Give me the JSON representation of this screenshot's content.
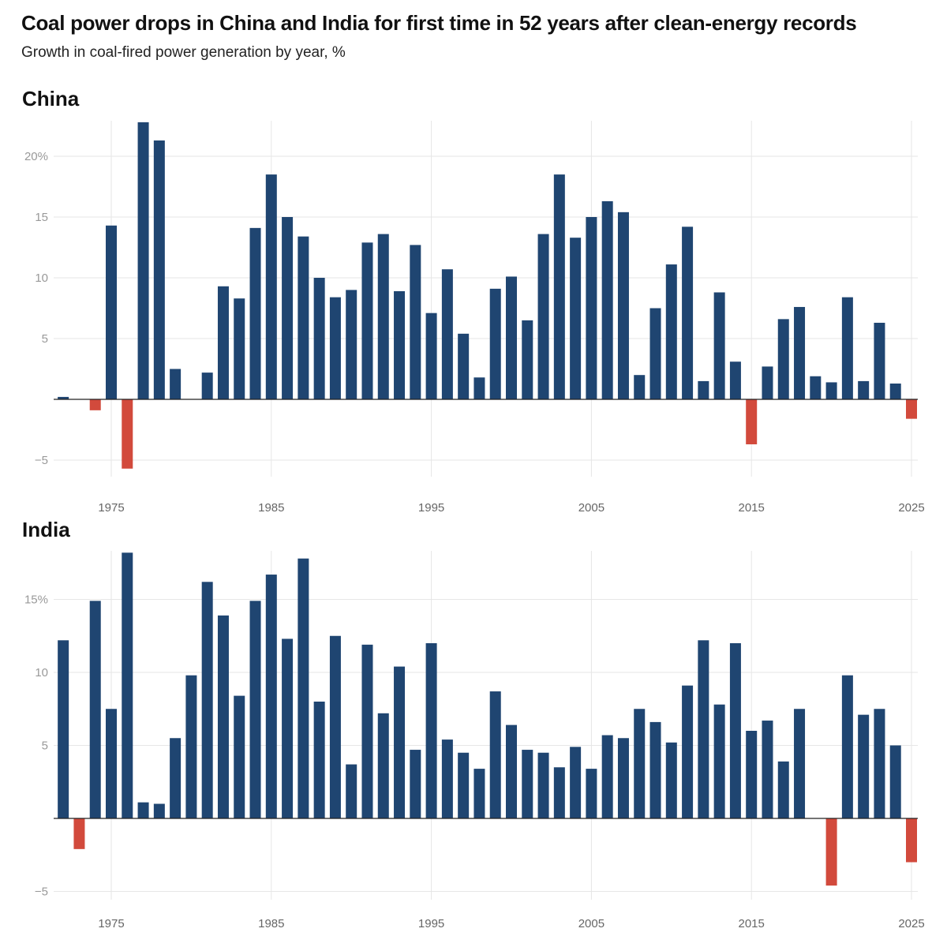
{
  "title": "Coal power drops in China and India for first time in 52 years after clean-energy records",
  "subtitle": "Growth in coal-fired power generation by year, %",
  "colors": {
    "positive": "#1f4571",
    "negative": "#d24a3c",
    "grid": "#e6e6e6",
    "axis": "#222222"
  },
  "chart_data": [
    {
      "type": "bar",
      "title": "China",
      "xlabel": "",
      "ylabel": "",
      "x_ticks": [
        "1975",
        "1985",
        "1995",
        "2005",
        "2015",
        "2025"
      ],
      "y_ticks": [
        {
          "v": -5,
          "label": "−5"
        },
        {
          "v": 5,
          "label": "5"
        },
        {
          "v": 10,
          "label": "10"
        },
        {
          "v": 15,
          "label": "15"
        },
        {
          "v": 20,
          "label": "20%"
        }
      ],
      "ylim": [
        -5.7,
        23
      ],
      "grid": true,
      "years": [
        1972,
        1973,
        1974,
        1975,
        1976,
        1977,
        1978,
        1979,
        1980,
        1981,
        1982,
        1983,
        1984,
        1985,
        1986,
        1987,
        1988,
        1989,
        1990,
        1991,
        1992,
        1993,
        1994,
        1995,
        1996,
        1997,
        1998,
        1999,
        2000,
        2001,
        2002,
        2003,
        2004,
        2005,
        2006,
        2007,
        2008,
        2009,
        2010,
        2011,
        2012,
        2013,
        2014,
        2015,
        2016,
        2017,
        2018,
        2019,
        2020,
        2021,
        2022,
        2023,
        2024,
        2025
      ],
      "values": [
        0.2,
        0,
        -0.9,
        14.3,
        -5.7,
        22.8,
        21.3,
        2.5,
        0,
        2.2,
        9.3,
        8.3,
        14.1,
        18.5,
        15.0,
        13.4,
        10.0,
        8.4,
        9.0,
        12.9,
        13.6,
        8.9,
        12.7,
        7.1,
        10.7,
        5.4,
        1.8,
        9.1,
        10.1,
        6.5,
        13.6,
        18.5,
        13.3,
        15.0,
        16.3,
        15.4,
        2.0,
        7.5,
        11.1,
        14.2,
        1.5,
        8.8,
        3.1,
        -3.7,
        2.7,
        6.6,
        7.6,
        1.9,
        1.4,
        8.4,
        1.5,
        6.3,
        1.3,
        -1.6
      ]
    },
    {
      "type": "bar",
      "title": "India",
      "xlabel": "",
      "ylabel": "",
      "x_ticks": [
        "1975",
        "1985",
        "1995",
        "2005",
        "2015",
        "2025"
      ],
      "y_ticks": [
        {
          "v": -5,
          "label": "−5"
        },
        {
          "v": 5,
          "label": "5"
        },
        {
          "v": 10,
          "label": "10"
        },
        {
          "v": 15,
          "label": "15%"
        }
      ],
      "ylim": [
        -5,
        18.3
      ],
      "grid": true,
      "years": [
        1972,
        1973,
        1974,
        1975,
        1976,
        1977,
        1978,
        1979,
        1980,
        1981,
        1982,
        1983,
        1984,
        1985,
        1986,
        1987,
        1988,
        1989,
        1990,
        1991,
        1992,
        1993,
        1994,
        1995,
        1996,
        1997,
        1998,
        1999,
        2000,
        2001,
        2002,
        2003,
        2004,
        2005,
        2006,
        2007,
        2008,
        2009,
        2010,
        2011,
        2012,
        2013,
        2014,
        2015,
        2016,
        2017,
        2018,
        2019,
        2020,
        2021,
        2022,
        2023,
        2024,
        2025
      ],
      "values": [
        12.2,
        -2.1,
        14.9,
        7.5,
        18.2,
        1.1,
        1.0,
        5.5,
        9.8,
        16.2,
        13.9,
        8.4,
        14.9,
        16.7,
        12.3,
        17.8,
        8.0,
        12.5,
        3.7,
        11.9,
        7.2,
        10.4,
        4.7,
        12.0,
        5.4,
        4.5,
        3.4,
        8.7,
        6.4,
        4.7,
        4.5,
        3.5,
        4.9,
        3.4,
        5.7,
        5.5,
        7.5,
        6.6,
        5.2,
        9.1,
        12.2,
        7.8,
        12.0,
        6.0,
        6.7,
        3.9,
        7.5,
        0,
        -4.6,
        9.8,
        7.1,
        7.5,
        5.0,
        -3.0
      ]
    }
  ]
}
